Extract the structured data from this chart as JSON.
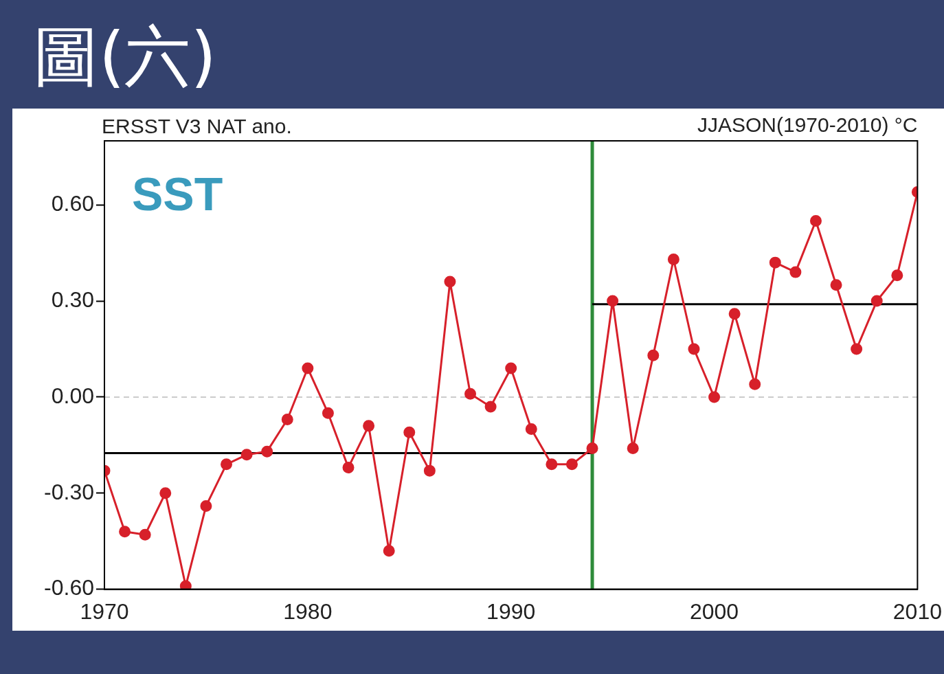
{
  "chart_data": {
    "type": "line",
    "title": "圖(六)",
    "subtitle": "ERSST V3 NAT ano.",
    "annotations": [
      "JJASON(1970-2010) °C",
      "SST"
    ],
    "x": [
      1970,
      1971,
      1972,
      1973,
      1974,
      1975,
      1976,
      1977,
      1978,
      1979,
      1980,
      1981,
      1982,
      1983,
      1984,
      1985,
      1986,
      1987,
      1988,
      1989,
      1990,
      1991,
      1992,
      1993,
      1994,
      1995,
      1996,
      1997,
      1998,
      1999,
      2000,
      2001,
      2002,
      2003,
      2004,
      2005,
      2006,
      2007,
      2008,
      2009,
      2010
    ],
    "series": [
      {
        "color": "#d7202a",
        "marker": "circle",
        "values": [
          -0.23,
          -0.42,
          -0.43,
          -0.3,
          -0.59,
          -0.34,
          -0.21,
          -0.18,
          -0.17,
          -0.07,
          0.09,
          -0.05,
          -0.22,
          -0.09,
          -0.48,
          -0.11,
          -0.23,
          0.36,
          0.01,
          -0.03,
          0.09,
          -0.1,
          -0.21,
          -0.21,
          -0.16,
          0.3,
          -0.16,
          0.13,
          0.43,
          0.15,
          0.0,
          0.26,
          0.04,
          0.42,
          0.39,
          0.55,
          0.35,
          0.15,
          0.3,
          0.38,
          0.64
        ]
      },
      {
        "color": "#000000",
        "marker": "none",
        "x": [
          1970,
          1994
        ],
        "values": [
          -0.175,
          -0.175
        ]
      },
      {
        "color": "#000000",
        "marker": "none",
        "x": [
          1994,
          2010
        ],
        "values": [
          0.29,
          0.29
        ]
      }
    ],
    "xlim": [
      1970,
      2010
    ],
    "xticks": [
      1970,
      1980,
      1990,
      2000,
      2010
    ],
    "ylim": [
      -0.6,
      0.8
    ],
    "yticks": [
      {
        "value": -0.6,
        "label": "-0.60"
      },
      {
        "value": -0.3,
        "label": "-0.30"
      },
      {
        "value": 0,
        "label": "0.00"
      },
      {
        "value": 0.3,
        "label": "0.30"
      },
      {
        "value": 0.6,
        "label": "0.60"
      }
    ],
    "ref_lines": [
      {
        "axis": "y",
        "value": 0,
        "color": "#bbbbbb",
        "line_style": "dashed"
      },
      {
        "axis": "x",
        "value": 1994,
        "color": "#2e8b3a",
        "line_style": "solid"
      }
    ],
    "line_style": "solid",
    "grid": false,
    "legend": false
  }
}
